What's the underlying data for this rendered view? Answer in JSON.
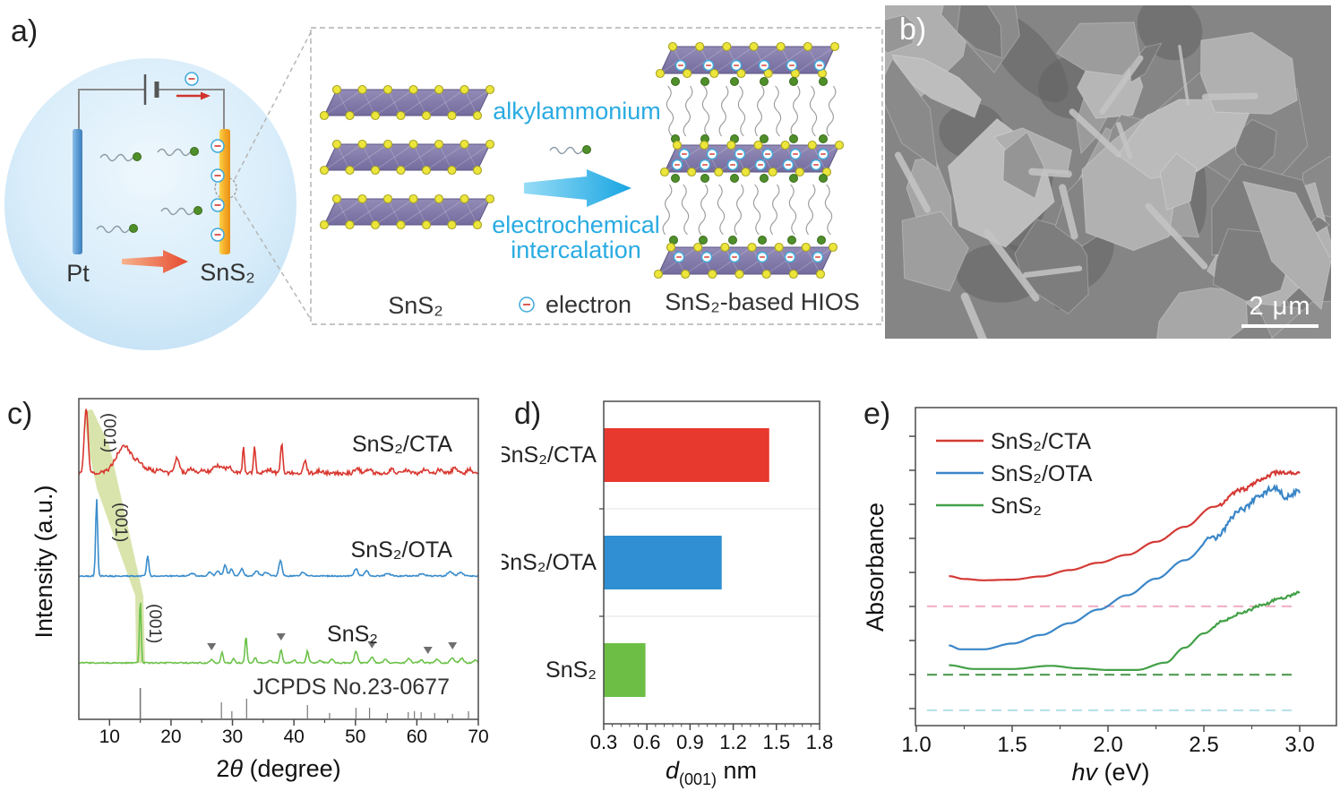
{
  "panels": {
    "a": {
      "label": "a)",
      "pt": "Pt",
      "sns2_electrode": "SnS₂",
      "alkylammonium": "alkylammonium",
      "process_line1": "electrochemical",
      "process_line2": "intercalation",
      "sns2_layers": "SnS₂",
      "electron": "electron",
      "hios": "SnS₂-based HIOS"
    },
    "b": {
      "label": "b)",
      "scale_bar": "2 μm"
    },
    "c": {
      "label": "c)"
    },
    "d": {
      "label": "d)"
    },
    "e": {
      "label": "e)"
    }
  },
  "chart_data": [
    {
      "id": "xrd",
      "panel": "c",
      "type": "line",
      "xlabel_prefix": "2",
      "xlabel_italic": "θ",
      "xlabel_suffix": " (degree)",
      "ylabel": "Intensity (a.u.)",
      "xlim": [
        5,
        70
      ],
      "xticks": [
        10,
        20,
        30,
        40,
        50,
        60,
        70
      ],
      "xminor": [
        15,
        25,
        35,
        45,
        55,
        65
      ],
      "peak_label": "(001)",
      "reference_label": "JCPDS No.23-0677",
      "series": [
        {
          "name": "SnS₂/CTA",
          "color": "#d93830",
          "baseline": 0.768,
          "noise": 0.006,
          "peak_001": 6.2,
          "peaks": [
            [
              6.2,
              0.207,
              0.3
            ],
            [
              12.4,
              0.084,
              1.3
            ],
            [
              14.9,
              0.025,
              0.5
            ],
            [
              16.5,
              0.014,
              0.5
            ],
            [
              18.3,
              0.014,
              0.5
            ],
            [
              21.0,
              0.05,
              0.35
            ],
            [
              23.2,
              0.011,
              0.5
            ],
            [
              25.1,
              0.011,
              0.5
            ],
            [
              27.8,
              0.022,
              0.9
            ],
            [
              29.6,
              0.014,
              0.5
            ],
            [
              31.8,
              0.087,
              0.15
            ],
            [
              33.6,
              0.084,
              0.15
            ],
            [
              36.1,
              0.011,
              0.4
            ],
            [
              38.0,
              0.092,
              0.18
            ],
            [
              41.8,
              0.036,
              0.25
            ],
            [
              44.2,
              0.008,
              0.4
            ],
            [
              50.3,
              0.017,
              0.35
            ],
            [
              52.2,
              0.011,
              0.35
            ],
            [
              55.9,
              0.011,
              0.4
            ],
            [
              58.2,
              0.008,
              0.4
            ],
            [
              61.3,
              0.011,
              0.4
            ],
            [
              63.7,
              0.011,
              0.4
            ],
            [
              66.2,
              0.017,
              0.4
            ],
            [
              68.6,
              0.011,
              0.4
            ]
          ]
        },
        {
          "name": "SnS₂/OTA",
          "color": "#3a8ccb",
          "baseline": 0.447,
          "noise": 0.002,
          "peak_001": 7.9,
          "peaks": [
            [
              7.9,
              0.24,
              0.16
            ],
            [
              16.2,
              0.062,
              0.18
            ],
            [
              23.4,
              0.008,
              0.4
            ],
            [
              26.3,
              0.011,
              0.3
            ],
            [
              27.6,
              0.017,
              0.3
            ],
            [
              28.8,
              0.034,
              0.25
            ],
            [
              29.8,
              0.022,
              0.25
            ],
            [
              31.5,
              0.022,
              0.3
            ],
            [
              33.9,
              0.017,
              0.3
            ],
            [
              35.5,
              0.011,
              0.4
            ],
            [
              37.8,
              0.05,
              0.25
            ],
            [
              41.5,
              0.011,
              0.4
            ],
            [
              50.1,
              0.022,
              0.3
            ],
            [
              51.8,
              0.017,
              0.3
            ],
            [
              55.3,
              0.008,
              0.4
            ],
            [
              60.9,
              0.008,
              0.4
            ],
            [
              65.4,
              0.014,
              0.4
            ],
            [
              67.1,
              0.011,
              0.4
            ]
          ]
        },
        {
          "name": "SnS₂",
          "color": "#6cc24a",
          "baseline": 0.176,
          "noise": 0.002,
          "peak_001": 15.0,
          "peaks": [
            [
              15.0,
              0.201,
              0.14
            ],
            [
              26.6,
              0.011,
              0.25
            ],
            [
              28.3,
              0.034,
              0.18
            ],
            [
              30.2,
              0.014,
              0.2
            ],
            [
              32.2,
              0.084,
              0.16
            ],
            [
              33.7,
              0.017,
              0.2
            ],
            [
              36.1,
              0.008,
              0.3
            ],
            [
              37.9,
              0.042,
              0.2
            ],
            [
              40.0,
              0.008,
              0.3
            ],
            [
              42.2,
              0.036,
              0.2
            ],
            [
              44.3,
              0.008,
              0.3
            ],
            [
              46.2,
              0.011,
              0.3
            ],
            [
              50.1,
              0.036,
              0.25
            ],
            [
              52.7,
              0.017,
              0.3
            ],
            [
              54.9,
              0.011,
              0.3
            ],
            [
              58.7,
              0.014,
              0.3
            ],
            [
              60.7,
              0.008,
              0.3
            ],
            [
              63.3,
              0.011,
              0.3
            ],
            [
              65.8,
              0.014,
              0.35
            ],
            [
              67.3,
              0.014,
              0.3
            ],
            [
              69.5,
              0.008,
              0.3
            ]
          ]
        }
      ],
      "impurity_markers_x": [
        26.6,
        37.9,
        52.7,
        61.8,
        65.8
      ],
      "reference_sticks": [
        [
          15.0,
          1.0
        ],
        [
          28.2,
          0.53
        ],
        [
          29.9,
          0.24
        ],
        [
          32.3,
          0.65
        ],
        [
          42.2,
          0.44
        ],
        [
          45.8,
          0.18
        ],
        [
          50.1,
          0.35
        ],
        [
          52.3,
          0.35
        ],
        [
          55.2,
          0.18
        ],
        [
          58.6,
          0.21
        ],
        [
          59.6,
          0.24
        ],
        [
          60.7,
          0.21
        ],
        [
          62.9,
          0.18
        ],
        [
          65.8,
          0.15
        ],
        [
          68.4,
          0.24
        ]
      ]
    },
    {
      "id": "interlayer-spacing",
      "panel": "d",
      "type": "bar",
      "orientation": "horizontal",
      "categories": [
        "SnS₂/CTA",
        "SnS₂/OTA",
        "SnS₂"
      ],
      "values": [
        1.45,
        1.12,
        0.59
      ],
      "bar_colors": [
        "#e8392e",
        "#2f8fd2",
        "#6cbe45"
      ],
      "xlabel_italic": "d",
      "xlabel_sub": "(001)",
      "xlabel_suffix": " nm",
      "xlim": [
        0.3,
        1.8
      ],
      "xticks": [
        0.3,
        0.6,
        0.9,
        1.2,
        1.5,
        1.8
      ]
    },
    {
      "id": "uvvis-absorbance",
      "panel": "e",
      "type": "line",
      "xlabel_italic": "hv",
      "xlabel_suffix": " (eV)",
      "ylabel": "Absorbance",
      "xlim": [
        1.0,
        3.2
      ],
      "xticks": [
        1.0,
        1.5,
        2.0,
        2.5,
        3.0
      ],
      "curve_x_range": [
        1.17,
        3.0
      ],
      "series": [
        {
          "name": "SnS₂/CTA",
          "color": "#d43a35",
          "noise_from": 2.58,
          "noise_amp": 0.006,
          "points": [
            [
              1.17,
              0.47
            ],
            [
              1.25,
              0.461
            ],
            [
              1.35,
              0.457
            ],
            [
              1.5,
              0.459
            ],
            [
              1.65,
              0.469
            ],
            [
              1.8,
              0.489
            ],
            [
              1.95,
              0.512
            ],
            [
              2.1,
              0.537
            ],
            [
              2.25,
              0.578
            ],
            [
              2.4,
              0.625
            ],
            [
              2.55,
              0.688
            ],
            [
              2.7,
              0.742
            ],
            [
              2.8,
              0.775
            ],
            [
              2.88,
              0.795
            ],
            [
              3.0,
              0.795
            ]
          ]
        },
        {
          "name": "SnS₂/OTA",
          "color": "#3a86c8",
          "noise_from": 2.5,
          "noise_amp": 0.009,
          "points": [
            [
              1.17,
              0.252
            ],
            [
              1.23,
              0.24
            ],
            [
              1.35,
              0.24
            ],
            [
              1.5,
              0.258
            ],
            [
              1.65,
              0.285
            ],
            [
              1.8,
              0.322
            ],
            [
              1.95,
              0.365
            ],
            [
              2.1,
              0.41
            ],
            [
              2.25,
              0.462
            ],
            [
              2.4,
              0.52
            ],
            [
              2.55,
              0.59
            ],
            [
              2.7,
              0.68
            ],
            [
              2.8,
              0.728
            ],
            [
              2.87,
              0.75
            ],
            [
              2.93,
              0.718
            ],
            [
              3.0,
              0.74
            ]
          ]
        },
        {
          "name": "SnS₂",
          "color": "#43a047",
          "noise_from": 2.55,
          "noise_amp": 0.004,
          "points": [
            [
              1.17,
              0.19
            ],
            [
              1.3,
              0.178
            ],
            [
              1.5,
              0.178
            ],
            [
              1.7,
              0.188
            ],
            [
              1.85,
              0.18
            ],
            [
              2.0,
              0.175
            ],
            [
              2.15,
              0.175
            ],
            [
              2.3,
              0.198
            ],
            [
              2.4,
              0.245
            ],
            [
              2.5,
              0.29
            ],
            [
              2.6,
              0.33
            ],
            [
              2.7,
              0.355
            ],
            [
              2.8,
              0.378
            ],
            [
              2.9,
              0.4
            ],
            [
              3.0,
              0.418
            ]
          ]
        }
      ],
      "baseline_dashes": [
        {
          "y": 0.375,
          "color": "#f2b3c9"
        },
        {
          "y": 0.16,
          "color": "#4f9a51"
        },
        {
          "y": 0.048,
          "color": "#b7e1eb"
        }
      ]
    }
  ]
}
